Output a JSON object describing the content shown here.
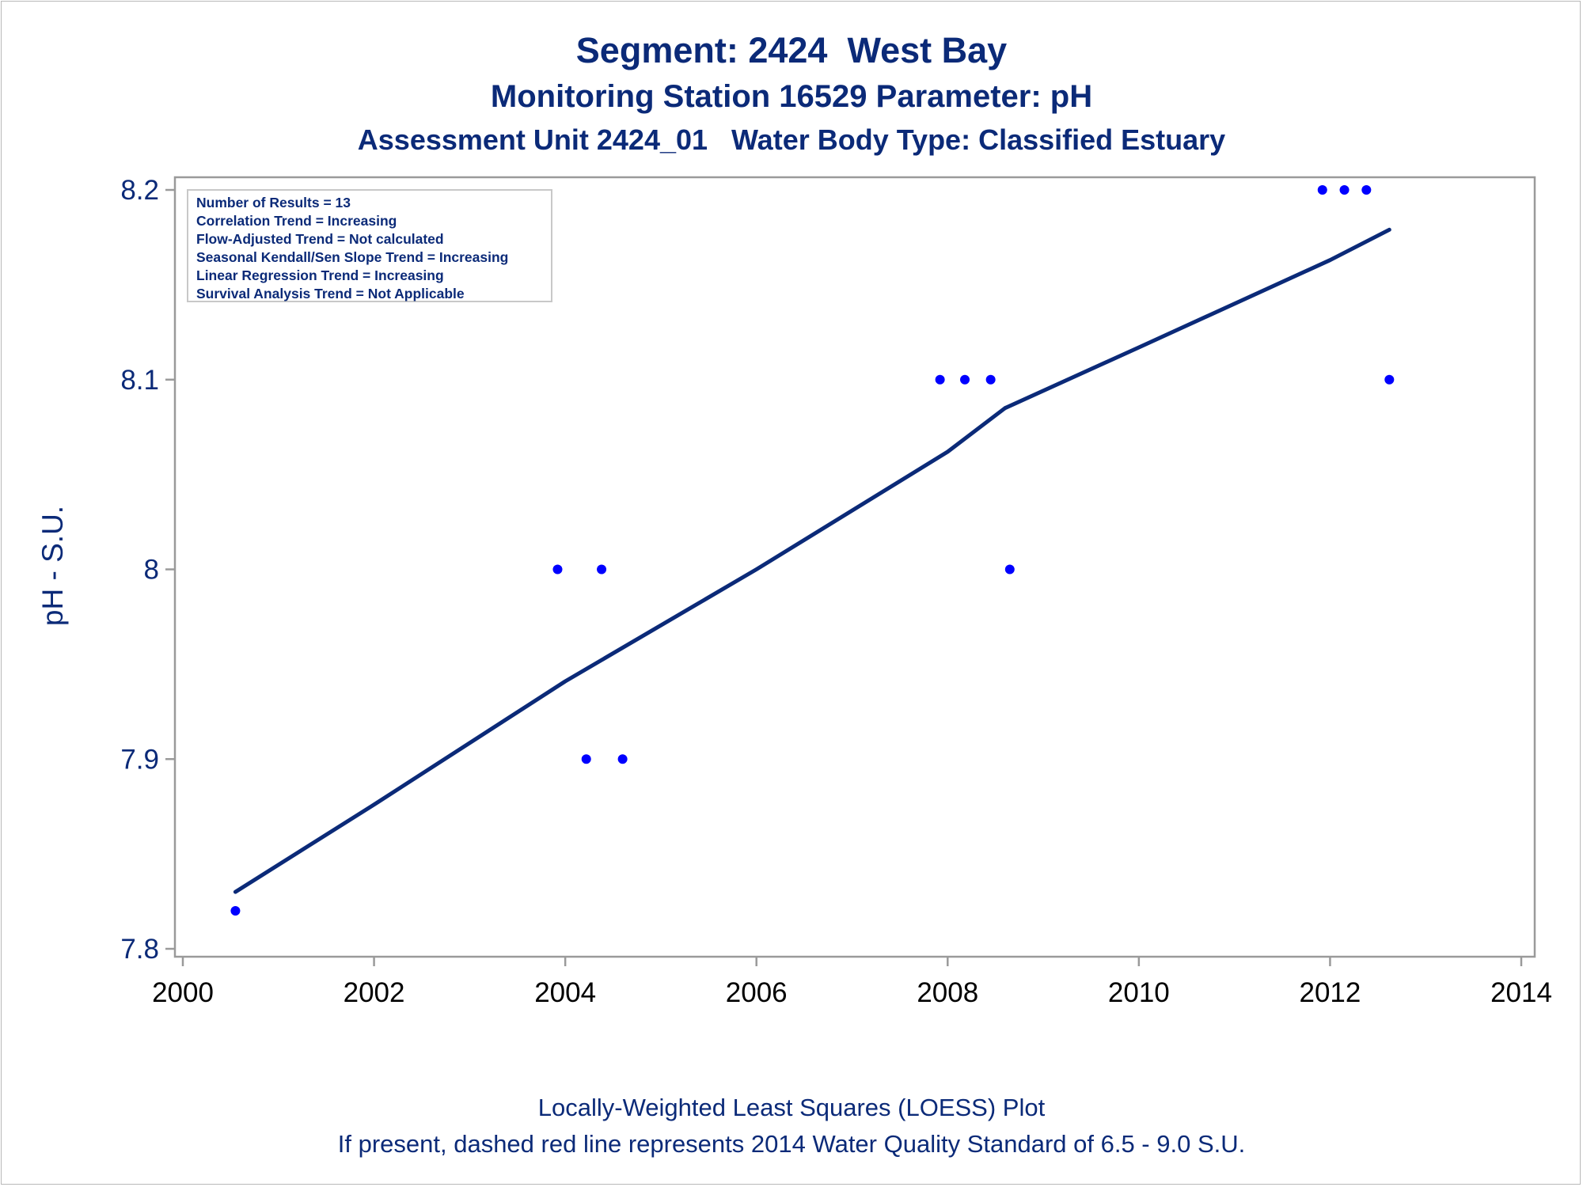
{
  "title": "Segment: 2424  West Bay",
  "subtitle": "Monitoring Station 16529 Parameter: pH",
  "subtitle2": "Assessment Unit 2424_01   Water Body Type: Classified Estuary",
  "stats": [
    "Number of Results = 13",
    "Correlation Trend = Increasing",
    "Flow-Adjusted Trend = Not calculated",
    "Seasonal Kendall/Sen Slope Trend = Increasing",
    "Linear Regression Trend = Increasing",
    "Survival Analysis Trend = Not Applicable"
  ],
  "footnote1": "Locally-Weighted Least Squares (LOESS) Plot",
  "footnote2": "If present, dashed red line represents 2014 Water Quality Standard of 6.5 - 9.0 S.U.",
  "colors": {
    "text": "#0b2a78",
    "points": "#0000ff",
    "loess": "#0b2a78",
    "axis": "#9a9a9a"
  },
  "chart_data": {
    "type": "scatter",
    "ylabel": "pH - S.U.",
    "xlabel": "",
    "xlim": [
      2000,
      2014
    ],
    "ylim": [
      7.8,
      8.2
    ],
    "xticks": [
      "2000",
      "2002",
      "2004",
      "2006",
      "2008",
      "2010",
      "2012",
      "2014"
    ],
    "yticks": [
      "7.8",
      "7.9",
      "8",
      "8.1",
      "8.2"
    ],
    "grid": false,
    "points": [
      {
        "x": 2000.55,
        "y": 7.82
      },
      {
        "x": 2003.92,
        "y": 8.0
      },
      {
        "x": 2004.22,
        "y": 7.9
      },
      {
        "x": 2004.38,
        "y": 8.0
      },
      {
        "x": 2004.6,
        "y": 7.9
      },
      {
        "x": 2007.92,
        "y": 8.1
      },
      {
        "x": 2008.18,
        "y": 8.1
      },
      {
        "x": 2008.45,
        "y": 8.1
      },
      {
        "x": 2008.65,
        "y": 8.0
      },
      {
        "x": 2011.92,
        "y": 8.2
      },
      {
        "x": 2012.15,
        "y": 8.2
      },
      {
        "x": 2012.38,
        "y": 8.2
      },
      {
        "x": 2012.62,
        "y": 8.1
      }
    ],
    "loess": [
      {
        "x": 2000.55,
        "y": 7.83
      },
      {
        "x": 2002.0,
        "y": 7.876
      },
      {
        "x": 2004.0,
        "y": 7.941
      },
      {
        "x": 2006.0,
        "y": 8.0
      },
      {
        "x": 2008.0,
        "y": 8.062
      },
      {
        "x": 2008.6,
        "y": 8.085
      },
      {
        "x": 2010.0,
        "y": 8.117
      },
      {
        "x": 2012.0,
        "y": 8.163
      },
      {
        "x": 2012.62,
        "y": 8.179
      }
    ]
  }
}
